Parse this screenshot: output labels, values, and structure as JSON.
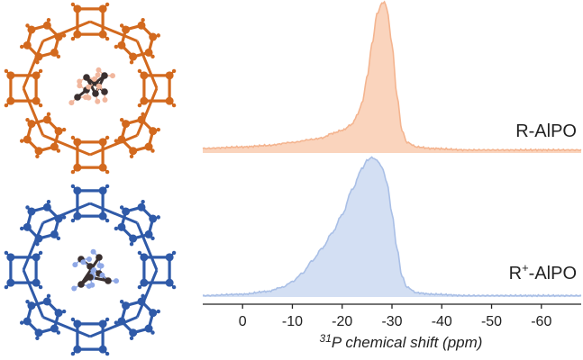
{
  "chart_data": {
    "type": "area",
    "xlabel_sup": "31",
    "xlabel": "P chemical shift (ppm)",
    "xlim": [
      8,
      -68
    ],
    "x_reversed": true,
    "ticks": [
      0,
      -10,
      -20,
      -30,
      -40,
      -50,
      -60
    ],
    "tick_labels": [
      "0",
      "-10",
      "-20",
      "-30",
      "-40",
      "-50",
      "-60"
    ],
    "grid": false,
    "series": [
      {
        "name": "R-AlPO",
        "label_main": "R-AlPO",
        "label_sup": "",
        "label_rest": "",
        "color": "#f4b48f",
        "fill": "#fad4bd",
        "x": [
          8,
          0,
          -5,
          -10,
          -14,
          -16,
          -18,
          -20,
          -22,
          -23,
          -24,
          -25,
          -26,
          -27,
          -28,
          -28.5,
          -29,
          -30,
          -31,
          -32,
          -33,
          -35,
          -38,
          -45,
          -55,
          -68
        ],
        "y": [
          0.03,
          0.04,
          0.05,
          0.07,
          0.09,
          0.1,
          0.13,
          0.15,
          0.19,
          0.25,
          0.33,
          0.5,
          0.72,
          0.92,
          0.99,
          1.0,
          0.95,
          0.72,
          0.38,
          0.15,
          0.07,
          0.04,
          0.03,
          0.02,
          0.02,
          0.02
        ]
      },
      {
        "name": "R+-AlPO",
        "label_main": "R",
        "label_sup": "+",
        "label_rest": "-AlPO",
        "color": "#a9bfe6",
        "fill": "#d3dff3",
        "x": [
          8,
          0,
          -5,
          -8,
          -10,
          -12,
          -14,
          -16,
          -18,
          -20,
          -22,
          -24,
          -25,
          -26,
          -27,
          -28,
          -29,
          -30,
          -31,
          -32,
          -33,
          -35,
          -38,
          -45,
          -55,
          -68
        ],
        "y": [
          0.01,
          0.02,
          0.04,
          0.07,
          0.11,
          0.17,
          0.26,
          0.35,
          0.46,
          0.59,
          0.77,
          0.92,
          0.98,
          1.0,
          0.98,
          0.93,
          0.82,
          0.6,
          0.35,
          0.15,
          0.07,
          0.03,
          0.02,
          0.01,
          0.01,
          0.01
        ]
      }
    ]
  },
  "structures": [
    {
      "name": "orange-framework",
      "color": "#d2691e",
      "guest": "neutral"
    },
    {
      "name": "blue-framework",
      "color": "#2f5aa8",
      "guest": "cation"
    }
  ]
}
